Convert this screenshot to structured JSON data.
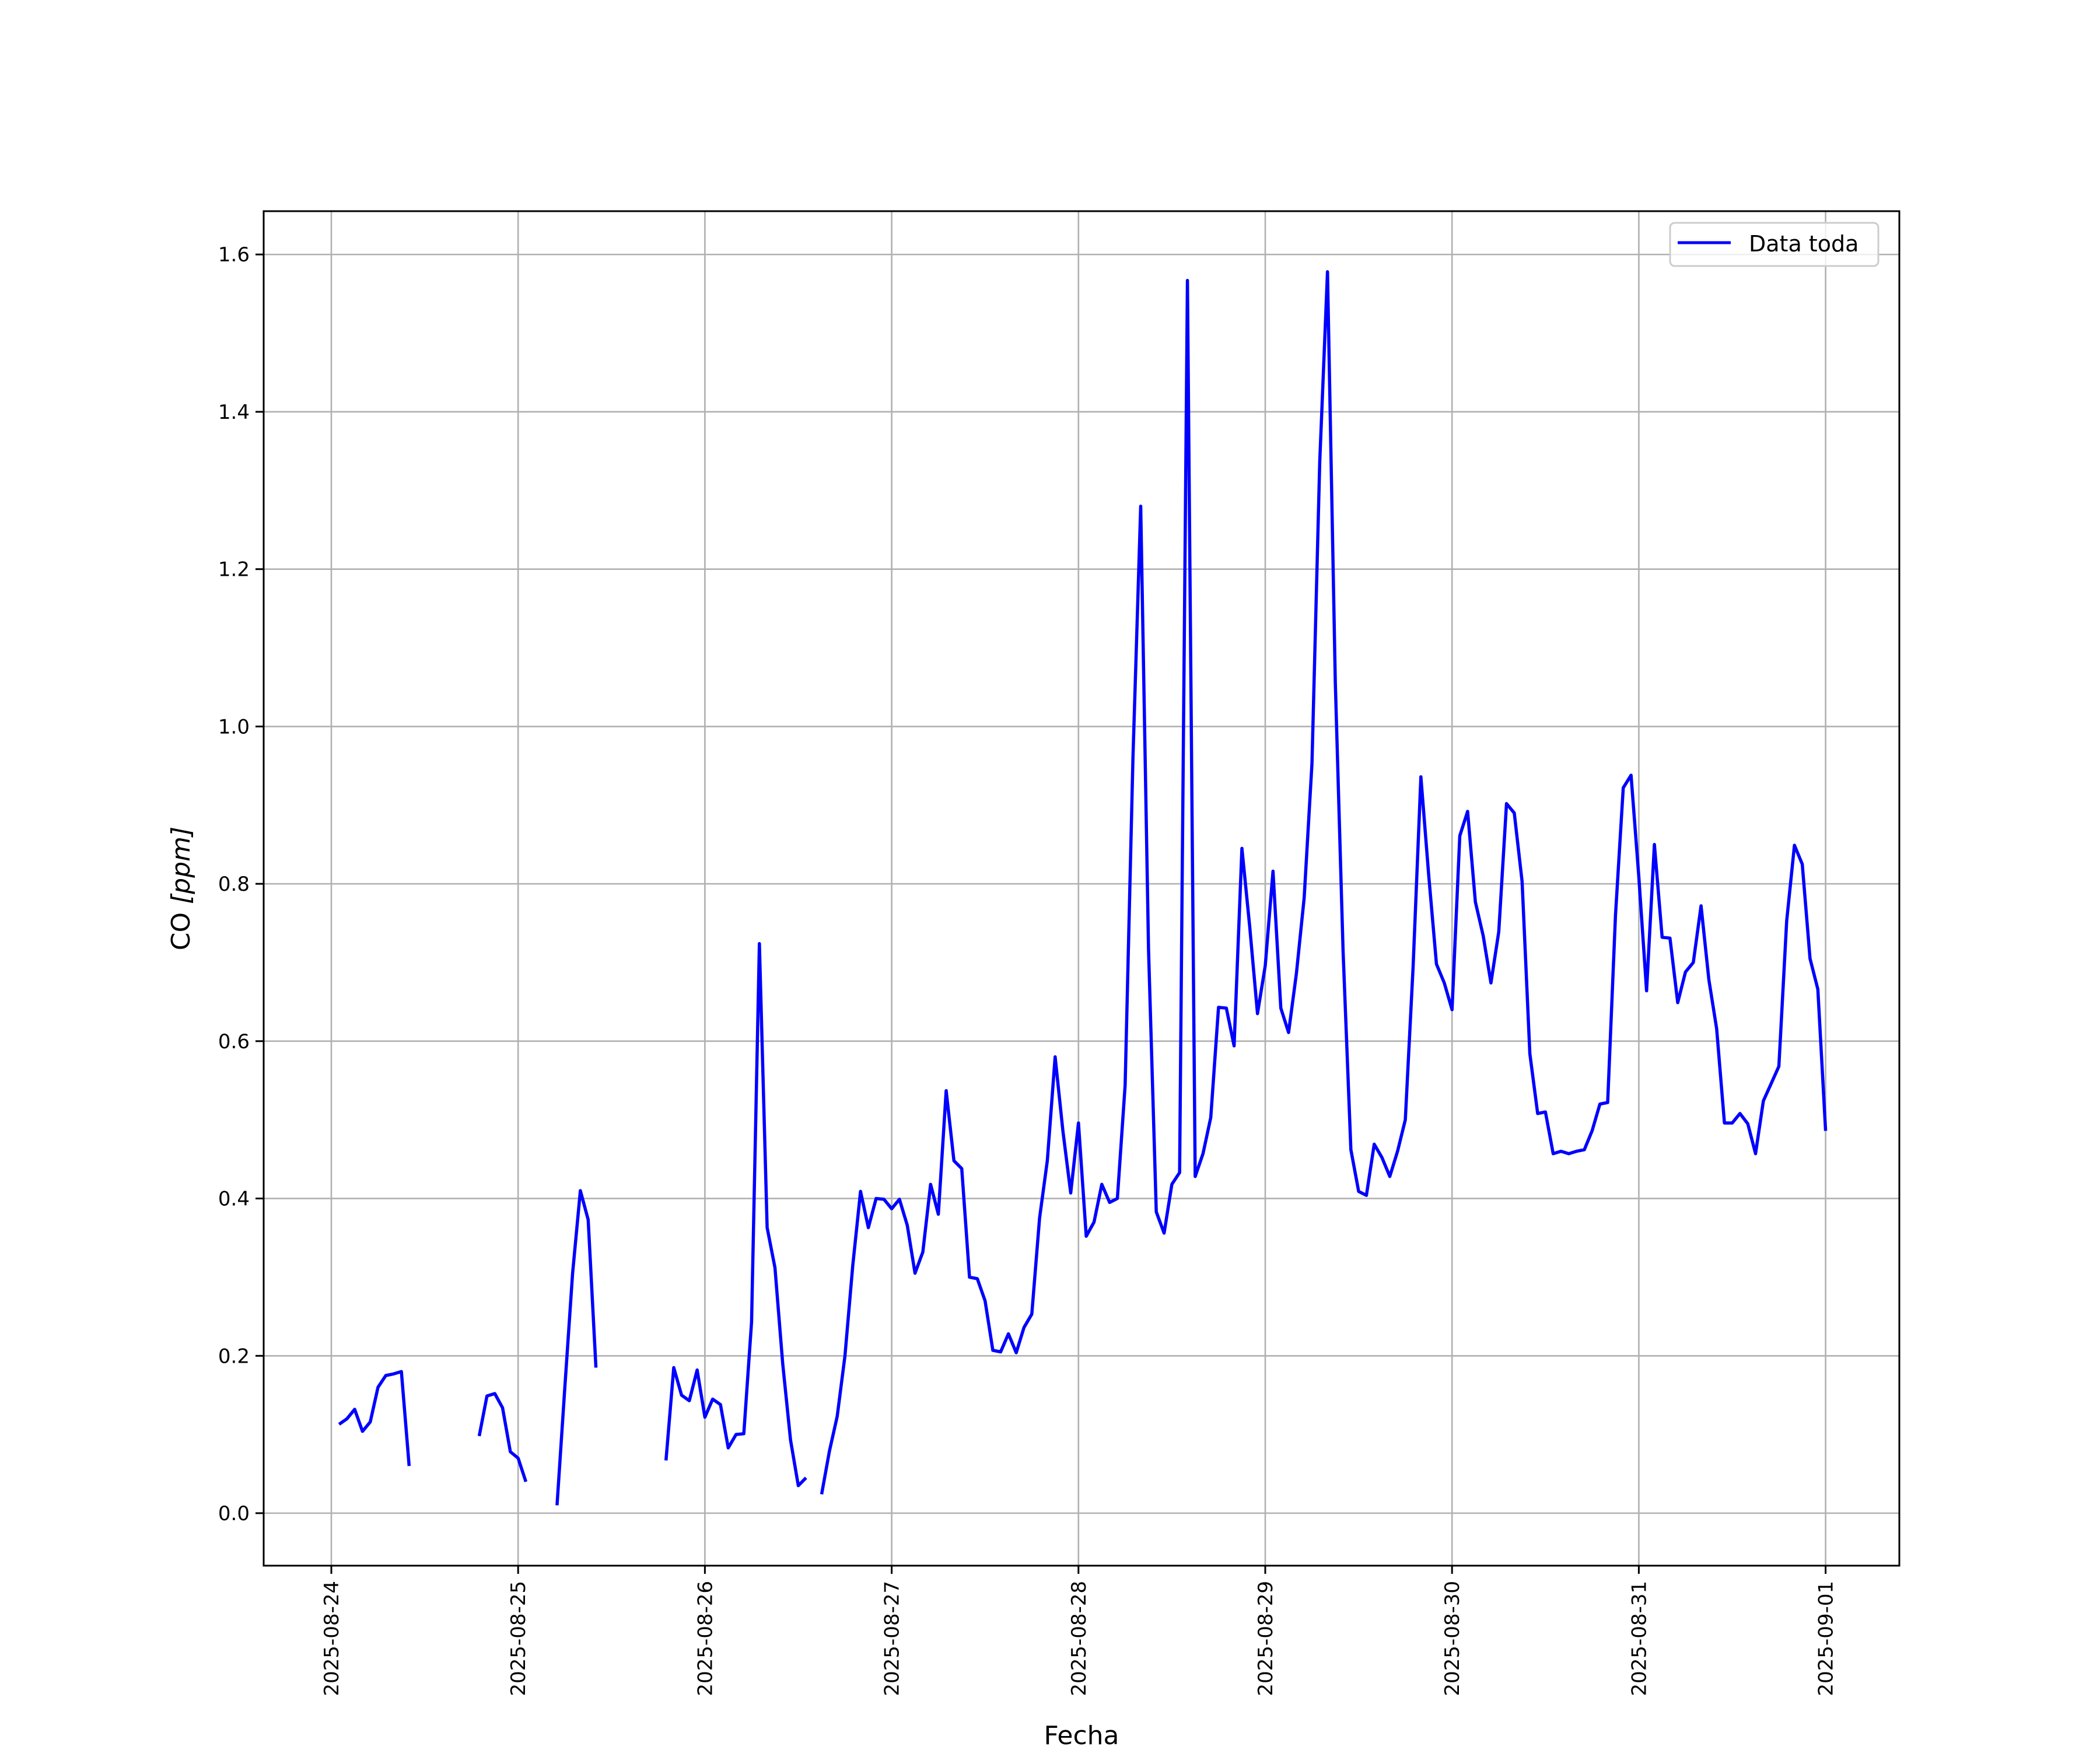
{
  "chart_data": {
    "type": "line",
    "title": "",
    "xlabel": "Fecha",
    "ylabel_main": "CO ",
    "ylabel_unit": "[ppm]",
    "xlim": [
      "2025-08-23 15:00",
      "2025-09-01 13:00"
    ],
    "ylim": [
      -0.07,
      1.657
    ],
    "grid": true,
    "legend_position": "top-right",
    "x_ticks": [
      "2025-08-24",
      "2025-08-25",
      "2025-08-26",
      "2025-08-27",
      "2025-08-28",
      "2025-08-29",
      "2025-08-30",
      "2025-08-31",
      "2025-09-01"
    ],
    "y_ticks": [
      0.0,
      0.2,
      0.4,
      0.6,
      0.8,
      1.0,
      1.2,
      1.4,
      1.6
    ],
    "y_tick_labels": [
      "0.0",
      "0.2",
      "0.4",
      "0.6",
      "0.8",
      "1.0",
      "1.2",
      "1.4",
      "1.6"
    ],
    "series": [
      {
        "name": "Data toda",
        "color": "#0000ff",
        "segments": [
          [
            [
              "2025-08-24 01:00",
              0.113
            ],
            [
              "2025-08-24 02:00",
              0.12
            ],
            [
              "2025-08-24 03:00",
              0.132
            ],
            [
              "2025-08-24 04:00",
              0.104
            ],
            [
              "2025-08-24 05:00",
              0.116
            ],
            [
              "2025-08-24 06:00",
              0.16
            ],
            [
              "2025-08-24 07:00",
              0.175
            ],
            [
              "2025-08-24 08:00",
              0.177
            ],
            [
              "2025-08-24 09:00",
              0.18
            ],
            [
              "2025-08-24 10:00",
              0.06
            ]
          ],
          [
            [
              "2025-08-24 19:00",
              0.098
            ],
            [
              "2025-08-24 20:00",
              0.149
            ],
            [
              "2025-08-24 21:00",
              0.152
            ],
            [
              "2025-08-24 22:00",
              0.134
            ],
            [
              "2025-08-24 23:00",
              0.078
            ],
            [
              "2025-08-25 00:00",
              0.07
            ],
            [
              "2025-08-25 01:00",
              0.04
            ]
          ],
          [
            [
              "2025-08-25 05:00",
              0.01
            ],
            [
              "2025-08-25 06:00",
              0.16
            ],
            [
              "2025-08-25 07:00",
              0.305
            ],
            [
              "2025-08-25 08:00",
              0.41
            ],
            [
              "2025-08-25 09:00",
              0.373
            ],
            [
              "2025-08-25 10:00",
              0.185
            ]
          ],
          [
            [
              "2025-08-25 19:00",
              0.067
            ],
            [
              "2025-08-25 20:00",
              0.185
            ],
            [
              "2025-08-25 21:00",
              0.15
            ],
            [
              "2025-08-25 22:00",
              0.143
            ],
            [
              "2025-08-25 23:00",
              0.182
            ],
            [
              "2025-08-26 00:00",
              0.122
            ],
            [
              "2025-08-26 01:00",
              0.145
            ],
            [
              "2025-08-26 02:00",
              0.138
            ],
            [
              "2025-08-26 03:00",
              0.083
            ],
            [
              "2025-08-26 04:00",
              0.1
            ],
            [
              "2025-08-26 05:00",
              0.101
            ],
            [
              "2025-08-26 06:00",
              0.243
            ],
            [
              "2025-08-26 07:00",
              0.724
            ],
            [
              "2025-08-26 08:00",
              0.363
            ],
            [
              "2025-08-26 09:00",
              0.312
            ],
            [
              "2025-08-26 10:00",
              0.19
            ],
            [
              "2025-08-26 11:00",
              0.093
            ],
            [
              "2025-08-26 12:00",
              0.035
            ],
            [
              "2025-08-26 13:00",
              0.045
            ]
          ],
          [
            [
              "2025-08-26 15:00",
              0.024
            ],
            [
              "2025-08-26 16:00",
              0.079
            ],
            [
              "2025-08-26 17:00",
              0.123
            ],
            [
              "2025-08-26 18:00",
              0.2
            ],
            [
              "2025-08-26 19:00",
              0.315
            ],
            [
              "2025-08-26 20:00",
              0.409
            ],
            [
              "2025-08-26 21:00",
              0.363
            ],
            [
              "2025-08-26 22:00",
              0.4
            ],
            [
              "2025-08-26 23:00",
              0.399
            ],
            [
              "2025-08-27 00:00",
              0.387
            ],
            [
              "2025-08-27 01:00",
              0.399
            ],
            [
              "2025-08-27 02:00",
              0.366
            ],
            [
              "2025-08-27 03:00",
              0.305
            ],
            [
              "2025-08-27 04:00",
              0.332
            ],
            [
              "2025-08-27 05:00",
              0.418
            ],
            [
              "2025-08-27 06:00",
              0.38
            ],
            [
              "2025-08-27 07:00",
              0.537
            ],
            [
              "2025-08-27 08:00",
              0.448
            ],
            [
              "2025-08-27 09:00",
              0.438
            ],
            [
              "2025-08-27 10:00",
              0.3
            ],
            [
              "2025-08-27 11:00",
              0.298
            ],
            [
              "2025-08-27 12:00",
              0.27
            ],
            [
              "2025-08-27 13:00",
              0.207
            ],
            [
              "2025-08-27 14:00",
              0.205
            ],
            [
              "2025-08-27 15:00",
              0.228
            ],
            [
              "2025-08-27 16:00",
              0.204
            ],
            [
              "2025-08-27 17:00",
              0.236
            ],
            [
              "2025-08-27 18:00",
              0.253
            ],
            [
              "2025-08-27 19:00",
              0.375
            ],
            [
              "2025-08-27 20:00",
              0.448
            ],
            [
              "2025-08-27 21:00",
              0.58
            ],
            [
              "2025-08-27 22:00",
              0.486
            ],
            [
              "2025-08-27 23:00",
              0.407
            ],
            [
              "2025-08-28 00:00",
              0.496
            ],
            [
              "2025-08-28 01:00",
              0.352
            ],
            [
              "2025-08-28 02:00",
              0.37
            ],
            [
              "2025-08-28 03:00",
              0.418
            ],
            [
              "2025-08-28 04:00",
              0.395
            ],
            [
              "2025-08-28 05:00",
              0.4
            ],
            [
              "2025-08-28 06:00",
              0.544
            ],
            [
              "2025-08-28 07:00",
              0.96
            ],
            [
              "2025-08-28 08:00",
              1.28
            ],
            [
              "2025-08-28 09:00",
              0.717
            ],
            [
              "2025-08-28 10:00",
              0.383
            ],
            [
              "2025-08-28 11:00",
              0.356
            ],
            [
              "2025-08-28 12:00",
              0.418
            ],
            [
              "2025-08-28 13:00",
              0.433
            ],
            [
              "2025-08-28 14:00",
              1.567
            ],
            [
              "2025-08-28 15:00",
              0.428
            ],
            [
              "2025-08-28 16:00",
              0.457
            ],
            [
              "2025-08-28 17:00",
              0.503
            ],
            [
              "2025-08-28 18:00",
              0.643
            ],
            [
              "2025-08-28 19:00",
              0.642
            ],
            [
              "2025-08-28 20:00",
              0.594
            ],
            [
              "2025-08-28 21:00",
              0.845
            ],
            [
              "2025-08-28 22:00",
              0.746
            ],
            [
              "2025-08-28 23:00",
              0.635
            ],
            [
              "2025-08-29 00:00",
              0.696
            ],
            [
              "2025-08-29 01:00",
              0.816
            ],
            [
              "2025-08-29 02:00",
              0.642
            ],
            [
              "2025-08-29 03:00",
              0.611
            ],
            [
              "2025-08-29 04:00",
              0.686
            ],
            [
              "2025-08-29 05:00",
              0.782
            ],
            [
              "2025-08-29 06:00",
              0.953
            ],
            [
              "2025-08-29 07:00",
              1.336
            ],
            [
              "2025-08-29 08:00",
              1.578
            ],
            [
              "2025-08-29 09:00",
              1.056
            ],
            [
              "2025-08-29 10:00",
              0.715
            ],
            [
              "2025-08-29 11:00",
              0.462
            ],
            [
              "2025-08-29 12:00",
              0.409
            ],
            [
              "2025-08-29 13:00",
              0.404
            ],
            [
              "2025-08-29 14:00",
              0.469
            ],
            [
              "2025-08-29 15:00",
              0.452
            ],
            [
              "2025-08-29 16:00",
              0.428
            ],
            [
              "2025-08-29 17:00",
              0.46
            ],
            [
              "2025-08-29 18:00",
              0.5
            ],
            [
              "2025-08-29 19:00",
              0.695
            ],
            [
              "2025-08-29 20:00",
              0.936
            ],
            [
              "2025-08-29 21:00",
              0.811
            ],
            [
              "2025-08-29 22:00",
              0.698
            ],
            [
              "2025-08-29 23:00",
              0.674
            ],
            [
              "2025-08-30 00:00",
              0.64
            ],
            [
              "2025-08-30 01:00",
              0.861
            ],
            [
              "2025-08-30 02:00",
              0.892
            ],
            [
              "2025-08-30 03:00",
              0.777
            ],
            [
              "2025-08-30 04:00",
              0.734
            ],
            [
              "2025-08-30 05:00",
              0.674
            ],
            [
              "2025-08-30 06:00",
              0.739
            ],
            [
              "2025-08-30 07:00",
              0.902
            ],
            [
              "2025-08-30 08:00",
              0.89
            ],
            [
              "2025-08-30 09:00",
              0.803
            ],
            [
              "2025-08-30 10:00",
              0.584
            ],
            [
              "2025-08-30 11:00",
              0.508
            ],
            [
              "2025-08-30 12:00",
              0.51
            ],
            [
              "2025-08-30 13:00",
              0.457
            ],
            [
              "2025-08-30 14:00",
              0.46
            ],
            [
              "2025-08-30 15:00",
              0.457
            ],
            [
              "2025-08-30 16:00",
              0.46
            ],
            [
              "2025-08-30 17:00",
              0.462
            ],
            [
              "2025-08-30 18:00",
              0.486
            ],
            [
              "2025-08-30 19:00",
              0.52
            ],
            [
              "2025-08-30 20:00",
              0.522
            ],
            [
              "2025-08-30 21:00",
              0.76
            ],
            [
              "2025-08-30 22:00",
              0.922
            ],
            [
              "2025-08-30 23:00",
              0.938
            ],
            [
              "2025-08-31 00:00",
              0.809
            ],
            [
              "2025-08-31 01:00",
              0.664
            ],
            [
              "2025-08-31 02:00",
              0.85
            ],
            [
              "2025-08-31 03:00",
              0.732
            ],
            [
              "2025-08-31 04:00",
              0.731
            ],
            [
              "2025-08-31 05:00",
              0.649
            ],
            [
              "2025-08-31 06:00",
              0.688
            ],
            [
              "2025-08-31 07:00",
              0.7
            ],
            [
              "2025-08-31 08:00",
              0.772
            ],
            [
              "2025-08-31 09:00",
              0.678
            ],
            [
              "2025-08-31 10:00",
              0.616
            ],
            [
              "2025-08-31 11:00",
              0.496
            ],
            [
              "2025-08-31 12:00",
              0.496
            ],
            [
              "2025-08-31 13:00",
              0.508
            ],
            [
              "2025-08-31 14:00",
              0.495
            ],
            [
              "2025-08-31 15:00",
              0.457
            ],
            [
              "2025-08-31 16:00",
              0.524
            ],
            [
              "2025-08-31 17:00",
              0.546
            ],
            [
              "2025-08-31 18:00",
              0.568
            ],
            [
              "2025-08-31 19:00",
              0.753
            ],
            [
              "2025-08-31 20:00",
              0.849
            ],
            [
              "2025-08-31 21:00",
              0.825
            ],
            [
              "2025-08-31 22:00",
              0.705
            ],
            [
              "2025-08-31 23:00",
              0.666
            ],
            [
              "2025-09-01 00:00",
              0.486
            ]
          ]
        ]
      }
    ]
  }
}
